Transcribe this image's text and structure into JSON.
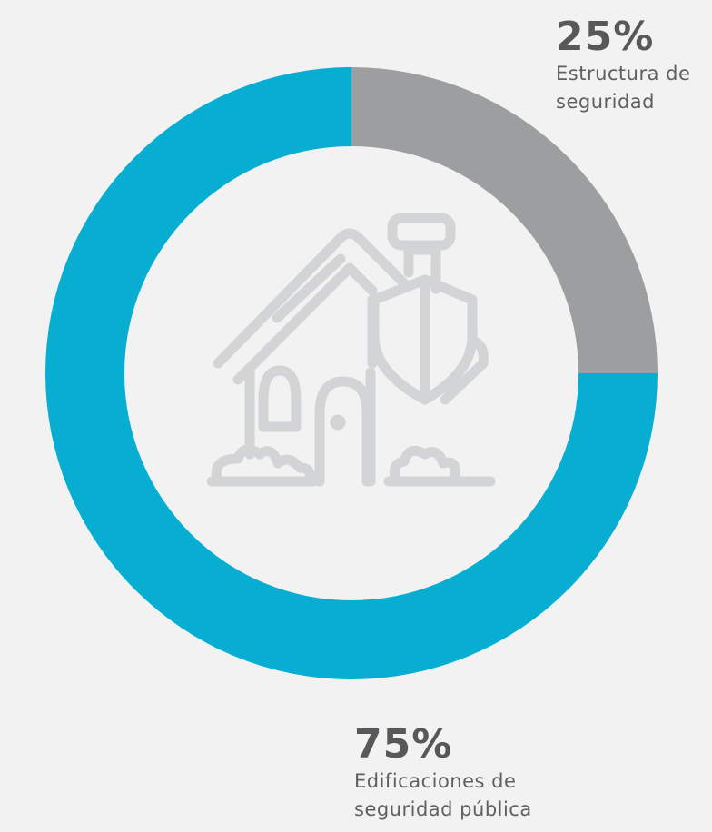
{
  "chart_data": {
    "type": "pie",
    "categories": [
      "Estructura de seguridad",
      "Edificaciones de seguridad pública"
    ],
    "values": [
      25,
      75
    ],
    "value_labels": [
      "25%",
      "75%"
    ],
    "colors": [
      "#9d9ea0",
      "#07aed1"
    ]
  }
}
